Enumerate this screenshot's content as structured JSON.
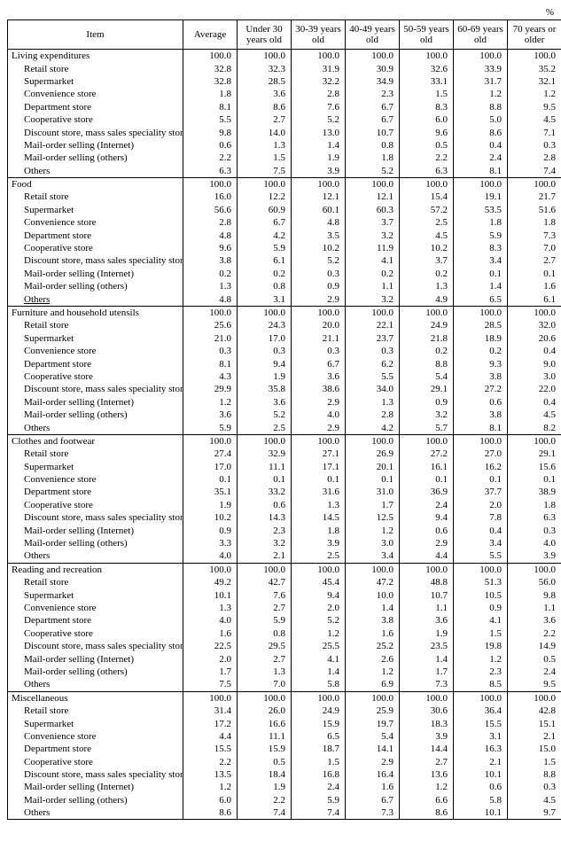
{
  "unit_label": "%",
  "header": {
    "item": "Item",
    "cols": [
      "Average",
      "Under 30 years old",
      "30-39 years old",
      "40-49 years old",
      "50-59 years old",
      "60-69 years old",
      "70 years or older"
    ]
  },
  "sub_labels": [
    "Retail store",
    "Supermarket",
    "Convenience store",
    "Department store",
    "Cooperative store",
    "Discount store, mass sales speciality store",
    "Mail-order selling  (Internet)",
    "Mail-order selling  (others)",
    "Others"
  ],
  "sections": [
    {
      "title": "Living expenditures",
      "head": [
        "100.0",
        "100.0",
        "100.0",
        "100.0",
        "100.0",
        "100.0",
        "100.0"
      ],
      "rows": [
        [
          "32.8",
          "32.3",
          "31.9",
          "30.9",
          "32.6",
          "33.9",
          "35.2"
        ],
        [
          "32.8",
          "28.5",
          "32.2",
          "34.9",
          "33.1",
          "31.7",
          "32.1"
        ],
        [
          "1.8",
          "3.6",
          "2.8",
          "2.3",
          "1.5",
          "1.2",
          "1.2"
        ],
        [
          "8.1",
          "8.6",
          "7.6",
          "6.7",
          "8.3",
          "8.8",
          "9.5"
        ],
        [
          "5.5",
          "2.7",
          "5.2",
          "6.7",
          "6.0",
          "5.0",
          "4.5"
        ],
        [
          "9.8",
          "14.0",
          "13.0",
          "10.7",
          "9.6",
          "8.6",
          "7.1"
        ],
        [
          "0.6",
          "1.3",
          "1.4",
          "0.8",
          "0.5",
          "0.4",
          "0.3"
        ],
        [
          "2.2",
          "1.5",
          "1.9",
          "1.8",
          "2.2",
          "2.4",
          "2.8"
        ],
        [
          "6.3",
          "7.5",
          "3.9",
          "5.2",
          "6.3",
          "8.1",
          "7.4"
        ]
      ],
      "others_underlined": false
    },
    {
      "title": "Food",
      "head": [
        "100.0",
        "100.0",
        "100.0",
        "100.0",
        "100.0",
        "100.0",
        "100.0"
      ],
      "rows": [
        [
          "16.0",
          "12.2",
          "12.1",
          "12.1",
          "15.4",
          "19.1",
          "21.7"
        ],
        [
          "56.6",
          "60.9",
          "60.1",
          "60.3",
          "57.2",
          "53.5",
          "51.6"
        ],
        [
          "2.8",
          "6.7",
          "4.8",
          "3.7",
          "2.5",
          "1.8",
          "1.8"
        ],
        [
          "4.8",
          "4.2",
          "3.5",
          "3.2",
          "4.5",
          "5.9",
          "7.3"
        ],
        [
          "9.6",
          "5.9",
          "10.2",
          "11.9",
          "10.2",
          "8.3",
          "7.0"
        ],
        [
          "3.8",
          "6.1",
          "5.2",
          "4.1",
          "3.7",
          "3.4",
          "2.7"
        ],
        [
          "0.2",
          "0.2",
          "0.3",
          "0.2",
          "0.2",
          "0.1",
          "0.1"
        ],
        [
          "1.3",
          "0.8",
          "0.9",
          "1.1",
          "1.3",
          "1.4",
          "1.6"
        ],
        [
          "4.8",
          "3.1",
          "2.9",
          "3.2",
          "4.9",
          "6.5",
          "6.1"
        ]
      ],
      "others_underlined": true
    },
    {
      "title": "Furniture and household utensils",
      "head": [
        "100.0",
        "100.0",
        "100.0",
        "100.0",
        "100.0",
        "100.0",
        "100.0"
      ],
      "rows": [
        [
          "25.6",
          "24.3",
          "20.0",
          "22.1",
          "24.9",
          "28.5",
          "32.0"
        ],
        [
          "21.0",
          "17.0",
          "21.1",
          "23.7",
          "21.8",
          "18.9",
          "20.6"
        ],
        [
          "0.3",
          "0.3",
          "0.3",
          "0.3",
          "0.2",
          "0.2",
          "0.4"
        ],
        [
          "8.1",
          "9.4",
          "6.7",
          "6.2",
          "8.8",
          "9.3",
          "9.0"
        ],
        [
          "4.3",
          "1.9",
          "3.6",
          "5.5",
          "5.4",
          "3.8",
          "3.0"
        ],
        [
          "29.9",
          "35.8",
          "38.6",
          "34.0",
          "29.1",
          "27.2",
          "22.0"
        ],
        [
          "1.2",
          "3.6",
          "2.9",
          "1.3",
          "0.9",
          "0.6",
          "0.4"
        ],
        [
          "3.6",
          "5.2",
          "4.0",
          "2.8",
          "3.2",
          "3.8",
          "4.5"
        ],
        [
          "5.9",
          "2.5",
          "2.9",
          "4.2",
          "5.7",
          "8.1",
          "8.2"
        ]
      ],
      "others_underlined": false
    },
    {
      "title": "Clothes and footwear",
      "head": [
        "100.0",
        "100.0",
        "100.0",
        "100.0",
        "100.0",
        "100.0",
        "100.0"
      ],
      "rows": [
        [
          "27.4",
          "32.9",
          "27.1",
          "26.9",
          "27.2",
          "27.0",
          "29.1"
        ],
        [
          "17.0",
          "11.1",
          "17.1",
          "20.1",
          "16.1",
          "16.2",
          "15.6"
        ],
        [
          "0.1",
          "0.1",
          "0.1",
          "0.1",
          "0.1",
          "0.1",
          "0.1"
        ],
        [
          "35.1",
          "33.2",
          "31.6",
          "31.0",
          "36.9",
          "37.7",
          "38.9"
        ],
        [
          "1.9",
          "0.6",
          "1.3",
          "1.7",
          "2.4",
          "2.0",
          "1.8"
        ],
        [
          "10.2",
          "14.3",
          "14.5",
          "12.5",
          "9.4",
          "7.8",
          "6.3"
        ],
        [
          "0.9",
          "2.3",
          "1.8",
          "1.2",
          "0.6",
          "0.4",
          "0.3"
        ],
        [
          "3.3",
          "3.2",
          "3.9",
          "3.0",
          "2.9",
          "3.4",
          "4.0"
        ],
        [
          "4.0",
          "2.1",
          "2.5",
          "3.4",
          "4.4",
          "5.5",
          "3.9"
        ]
      ],
      "others_underlined": false
    },
    {
      "title": "Reading and recreation",
      "head": [
        "100.0",
        "100.0",
        "100.0",
        "100.0",
        "100.0",
        "100.0",
        "100.0"
      ],
      "rows": [
        [
          "49.2",
          "42.7",
          "45.4",
          "47.2",
          "48.8",
          "51.3",
          "56.0"
        ],
        [
          "10.1",
          "7.6",
          "9.4",
          "10.0",
          "10.7",
          "10.5",
          "9.8"
        ],
        [
          "1.3",
          "2.7",
          "2.0",
          "1.4",
          "1.1",
          "0.9",
          "1.1"
        ],
        [
          "4.0",
          "5.9",
          "5.2",
          "3.8",
          "3.6",
          "4.1",
          "3.6"
        ],
        [
          "1.6",
          "0.8",
          "1.2",
          "1.6",
          "1.9",
          "1.5",
          "2.2"
        ],
        [
          "22.5",
          "29.5",
          "25.5",
          "25.2",
          "23.5",
          "19.8",
          "14.9"
        ],
        [
          "2.0",
          "2.7",
          "4.1",
          "2.6",
          "1.4",
          "1.2",
          "0.5"
        ],
        [
          "1.7",
          "1.3",
          "1.4",
          "1.2",
          "1.7",
          "2.3",
          "2.4"
        ],
        [
          "7.5",
          "7.0",
          "5.8",
          "6.9",
          "7.3",
          "8.5",
          "9.5"
        ]
      ],
      "others_underlined": false
    },
    {
      "title": "Miscellaneous",
      "head": [
        "100.0",
        "100.0",
        "100.0",
        "100.0",
        "100.0",
        "100.0",
        "100.0"
      ],
      "rows": [
        [
          "31.4",
          "26.0",
          "24.9",
          "25.9",
          "30.6",
          "36.4",
          "42.8"
        ],
        [
          "17.2",
          "16.6",
          "15.9",
          "19.7",
          "18.3",
          "15.5",
          "15.1"
        ],
        [
          "4.4",
          "11.1",
          "6.5",
          "5.4",
          "3.9",
          "3.1",
          "2.1"
        ],
        [
          "15.5",
          "15.9",
          "18.7",
          "14.1",
          "14.4",
          "16.3",
          "15.0"
        ],
        [
          "2.2",
          "0.5",
          "1.5",
          "2.9",
          "2.7",
          "2.1",
          "1.5"
        ],
        [
          "13.5",
          "18.4",
          "16.8",
          "16.4",
          "13.6",
          "10.1",
          "8.8"
        ],
        [
          "1.2",
          "1.9",
          "2.4",
          "1.6",
          "1.2",
          "0.6",
          "0.3"
        ],
        [
          "6.0",
          "2.2",
          "5.9",
          "6.7",
          "6.6",
          "5.8",
          "4.5"
        ],
        [
          "8.6",
          "7.4",
          "7.4",
          "7.3",
          "8.6",
          "10.1",
          "9.7"
        ]
      ],
      "others_underlined": false
    }
  ]
}
